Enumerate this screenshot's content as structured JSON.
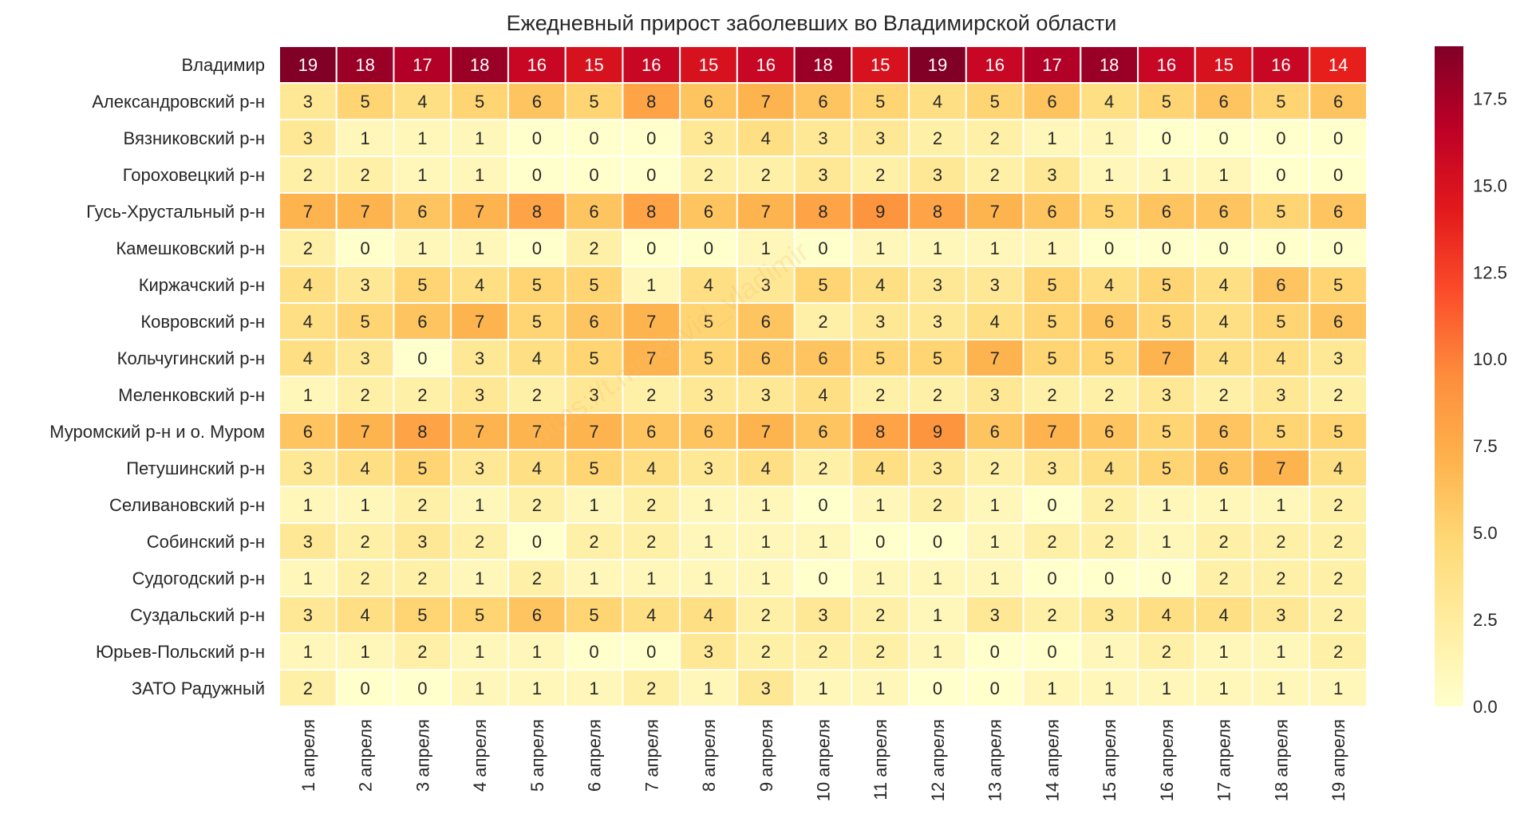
{
  "chart_data": {
    "type": "heatmap",
    "title": "Ежедневный прирост заболевших во Владимирской области",
    "rows": [
      "Владимир",
      "Александровский р-н",
      "Вязниковский р-н",
      "Гороховецкий р-н",
      "Гусь-Хрустальный р-н",
      "Камешковский р-н",
      "Киржачский р-н",
      "Ковровский р-н",
      "Кольчугинский р-н",
      "Меленковский р-н",
      "Муромский р-н и о. Муром",
      "Петушинский р-н",
      "Селивановский р-н",
      "Собинский р-н",
      "Судогодский р-н",
      "Суздальский р-н",
      "Юрьев-Польский р-н",
      "ЗАТО Радужный"
    ],
    "columns": [
      "1 апреля",
      "2 апреля",
      "3 апреля",
      "4 апреля",
      "5 апреля",
      "6 апреля",
      "7 апреля",
      "8 апреля",
      "9 апреля",
      "10 апреля",
      "11 апреля",
      "12 апреля",
      "13 апреля",
      "14 апреля",
      "15 апреля",
      "16 апреля",
      "17 апреля",
      "18 апреля",
      "19 апреля"
    ],
    "values": [
      [
        19,
        18,
        17,
        18,
        16,
        15,
        16,
        15,
        16,
        18,
        15,
        19,
        16,
        17,
        18,
        16,
        15,
        16,
        14
      ],
      [
        3,
        5,
        4,
        5,
        6,
        5,
        8,
        6,
        7,
        6,
        5,
        4,
        5,
        6,
        4,
        5,
        6,
        5,
        6
      ],
      [
        3,
        1,
        1,
        1,
        0,
        0,
        0,
        3,
        4,
        3,
        3,
        2,
        2,
        1,
        1,
        0,
        0,
        0,
        0
      ],
      [
        2,
        2,
        1,
        1,
        0,
        0,
        0,
        2,
        2,
        3,
        2,
        3,
        2,
        3,
        1,
        1,
        1,
        0,
        0
      ],
      [
        7,
        7,
        6,
        7,
        8,
        6,
        8,
        6,
        7,
        8,
        9,
        8,
        7,
        6,
        5,
        6,
        6,
        5,
        6
      ],
      [
        2,
        0,
        1,
        1,
        0,
        2,
        0,
        0,
        1,
        0,
        1,
        1,
        1,
        1,
        0,
        0,
        0,
        0,
        0
      ],
      [
        4,
        3,
        5,
        4,
        5,
        5,
        1,
        4,
        3,
        5,
        4,
        3,
        3,
        5,
        4,
        5,
        4,
        6,
        5
      ],
      [
        4,
        5,
        6,
        7,
        5,
        6,
        7,
        5,
        6,
        2,
        3,
        3,
        4,
        5,
        6,
        5,
        4,
        5,
        6
      ],
      [
        4,
        3,
        0,
        3,
        4,
        5,
        7,
        5,
        6,
        6,
        5,
        5,
        7,
        5,
        5,
        7,
        4,
        4,
        3
      ],
      [
        1,
        2,
        2,
        3,
        2,
        3,
        2,
        3,
        3,
        4,
        2,
        2,
        3,
        2,
        2,
        3,
        2,
        3,
        2
      ],
      [
        6,
        7,
        8,
        7,
        7,
        7,
        6,
        6,
        7,
        6,
        8,
        9,
        6,
        7,
        6,
        5,
        6,
        5,
        5
      ],
      [
        3,
        4,
        5,
        3,
        4,
        5,
        4,
        3,
        4,
        2,
        4,
        3,
        2,
        3,
        4,
        5,
        6,
        7,
        4
      ],
      [
        1,
        1,
        2,
        1,
        2,
        1,
        2,
        1,
        1,
        0,
        1,
        2,
        1,
        0,
        2,
        1,
        1,
        1,
        2
      ],
      [
        3,
        2,
        3,
        2,
        0,
        2,
        2,
        1,
        1,
        1,
        0,
        0,
        1,
        2,
        2,
        1,
        2,
        2,
        2
      ],
      [
        1,
        2,
        2,
        1,
        2,
        1,
        1,
        1,
        1,
        0,
        1,
        1,
        1,
        0,
        0,
        0,
        2,
        2,
        2
      ],
      [
        3,
        4,
        5,
        5,
        6,
        5,
        4,
        4,
        2,
        3,
        2,
        1,
        3,
        2,
        3,
        4,
        4,
        3,
        2
      ],
      [
        1,
        1,
        2,
        1,
        1,
        0,
        0,
        3,
        2,
        2,
        2,
        1,
        0,
        0,
        1,
        2,
        1,
        1,
        2
      ],
      [
        2,
        0,
        0,
        1,
        1,
        1,
        2,
        1,
        3,
        1,
        1,
        0,
        0,
        1,
        1,
        1,
        1,
        1,
        1
      ]
    ],
    "vmin": 0,
    "vmax": 19,
    "colormap": "YlOrRd",
    "colorbar_ticks": [
      "0.0",
      "2.5",
      "5.0",
      "7.5",
      "10.0",
      "12.5",
      "15.0",
      "17.5"
    ],
    "watermark": "https://t.me/covid_vladimir"
  }
}
